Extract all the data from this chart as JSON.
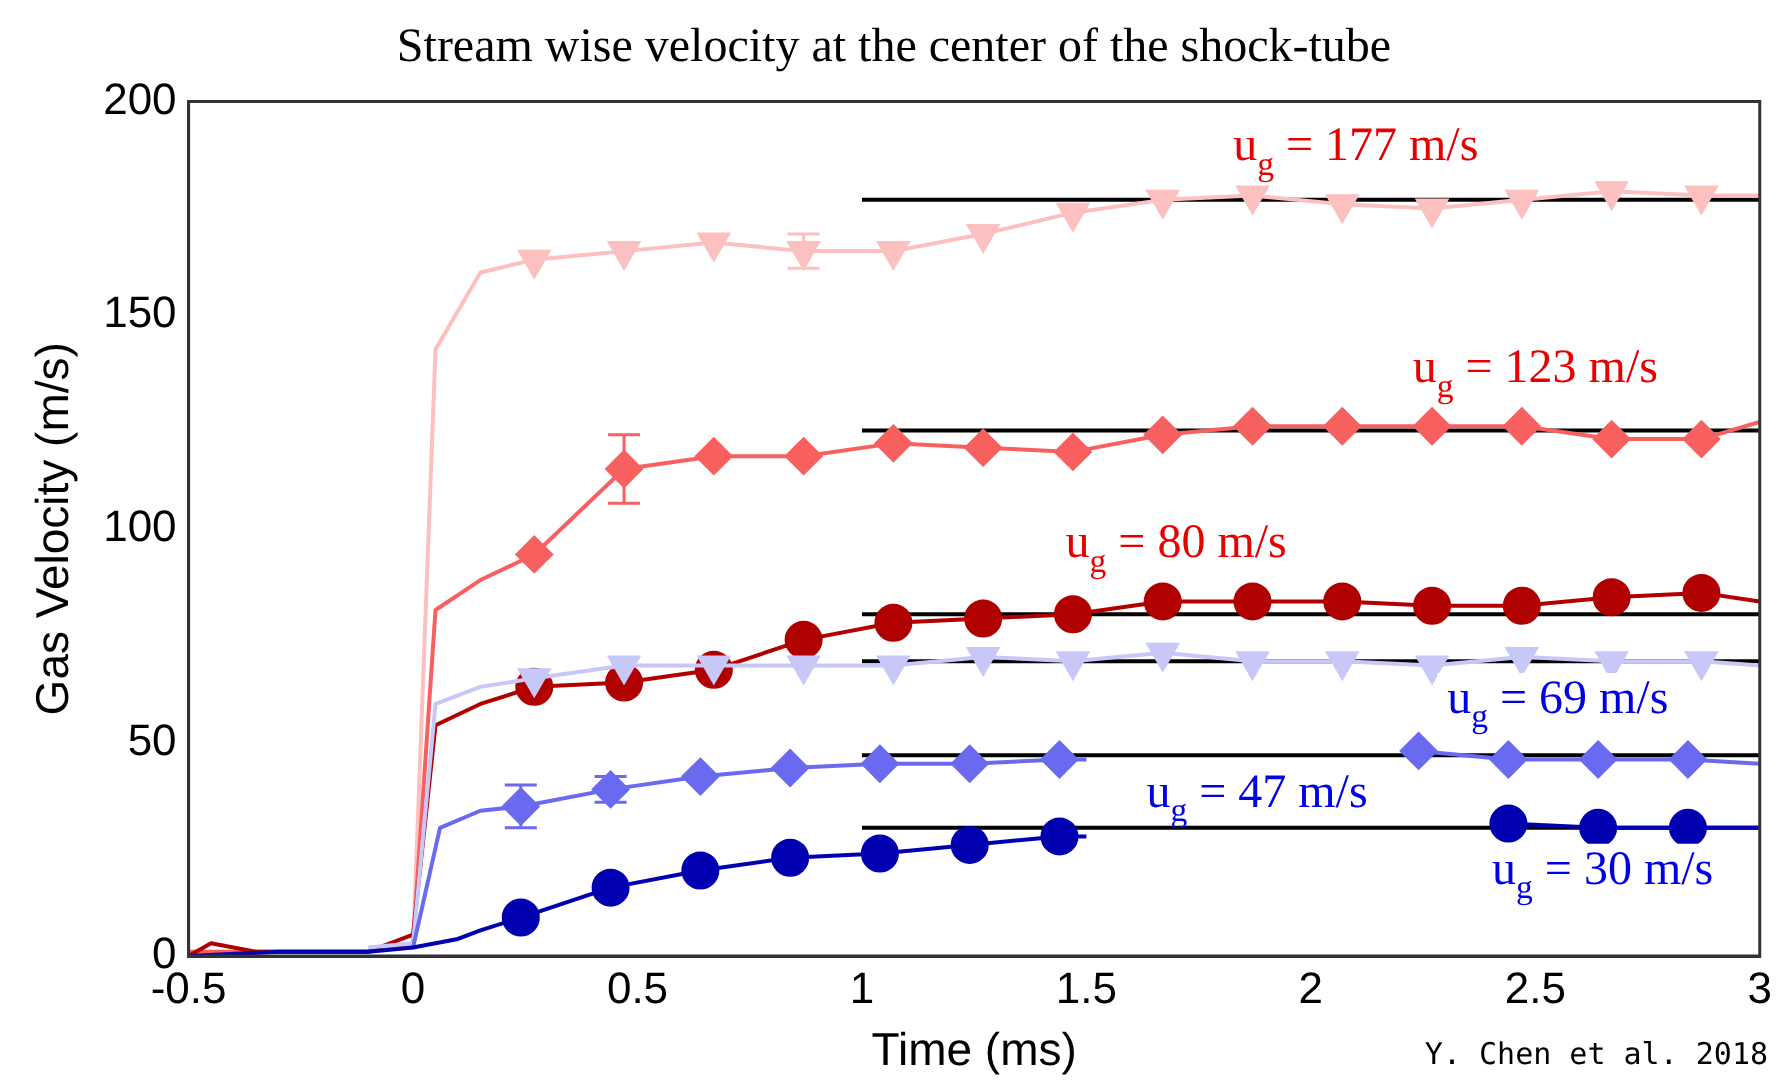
{
  "chart_data": {
    "type": "line",
    "title": "Stream wise velocity at the center of the shock-tube",
    "xlabel": "Time (ms)",
    "ylabel": "Gas Velocity (m/s)",
    "xlim": [
      -0.5,
      3
    ],
    "xticks": [
      -0.5,
      0,
      0.5,
      1,
      1.5,
      2,
      2.5,
      3
    ],
    "ylim": [
      0,
      200
    ],
    "yticks": [
      0,
      50,
      100,
      150,
      200
    ],
    "grid": false,
    "legend": false,
    "series": [
      {
        "type": "line",
        "color": "#000000",
        "marker": "none",
        "x": [
          1,
          3
        ],
        "values": [
          177,
          177
        ]
      },
      {
        "type": "line",
        "color": "#000000",
        "marker": "none",
        "x": [
          1,
          3
        ],
        "values": [
          123,
          123
        ]
      },
      {
        "type": "line",
        "color": "#000000",
        "marker": "none",
        "x": [
          1,
          3
        ],
        "values": [
          80,
          80
        ]
      },
      {
        "type": "line",
        "color": "#000000",
        "marker": "none",
        "x": [
          1,
          3
        ],
        "values": [
          69,
          69
        ]
      },
      {
        "type": "line",
        "color": "#000000",
        "marker": "none",
        "x": [
          1,
          3
        ],
        "values": [
          47,
          47
        ]
      },
      {
        "type": "line",
        "color": "#000000",
        "marker": "none",
        "x": [
          1,
          3
        ],
        "values": [
          30,
          30
        ]
      },
      {
        "name": "u$_{g}$ = 177 m/s",
        "color": "#fcc0c0",
        "marker": "none",
        "x": [
          -0.5,
          -0.3,
          -0.1,
          0,
          0.05,
          0.15,
          0.27,
          0.47,
          0.67,
          0.87,
          1.07,
          1.27,
          1.47,
          1.67,
          1.87,
          2.07,
          2.27,
          2.47,
          2.67,
          2.87,
          3
        ],
        "values": [
          1,
          1,
          1,
          2,
          142,
          160,
          163,
          165,
          167,
          165,
          165,
          169,
          174,
          177,
          178,
          176,
          175,
          177,
          179,
          178,
          178
        ]
      },
      {
        "type": "scatter",
        "color": "#fcc0c0",
        "marker": "triangle",
        "x": [
          0.27,
          0.47,
          0.67,
          0.87,
          1.07,
          1.27,
          1.47,
          1.67,
          1.87,
          2.07,
          2.27,
          2.47,
          2.67,
          2.87
        ],
        "values": [
          163,
          165,
          167,
          165,
          165,
          169,
          174,
          177,
          178,
          176,
          175,
          177,
          179,
          178
        ],
        "errors": [
          null,
          null,
          null,
          4,
          null,
          null,
          null,
          null,
          null,
          null,
          null,
          null,
          null,
          null
        ]
      },
      {
        "name": "u$_{g}$ = 123 m/s",
        "color": "#f86060",
        "marker": "none",
        "x": [
          -0.5,
          -0.3,
          -0.1,
          0,
          0.05,
          0.15,
          0.27,
          0.47,
          0.67,
          0.87,
          1.07,
          1.27,
          1.47,
          1.67,
          1.87,
          2.07,
          2.27,
          2.47,
          2.67,
          2.87,
          3
        ],
        "values": [
          1,
          1,
          1,
          3,
          81,
          88,
          94,
          114,
          117,
          117,
          120,
          119,
          118,
          122,
          124,
          124,
          124,
          124,
          121,
          121,
          125
        ]
      },
      {
        "type": "scatter",
        "color": "#f86060",
        "marker": "diamond",
        "x": [
          0.27,
          0.47,
          0.67,
          0.87,
          1.07,
          1.27,
          1.47,
          1.67,
          1.87,
          2.07,
          2.27,
          2.47,
          2.67,
          2.87
        ],
        "values": [
          94,
          114,
          117,
          117,
          120,
          119,
          118,
          122,
          124,
          124,
          124,
          124,
          121,
          121
        ],
        "errors": [
          null,
          8,
          null,
          null,
          null,
          null,
          null,
          null,
          null,
          null,
          null,
          null,
          null,
          null
        ]
      },
      {
        "name": "u$_{g}$ = 80 m/s",
        "color": "#b00000",
        "marker": "none",
        "x": [
          -0.5,
          -0.45,
          -0.35,
          -0.1,
          0,
          0.05,
          0.15,
          0.27,
          0.47,
          0.67,
          0.87,
          1.07,
          1.27,
          1.47,
          1.67,
          1.87,
          2.07,
          2.27,
          2.47,
          2.67,
          2.87,
          3
        ],
        "values": [
          0,
          3,
          1,
          1,
          5,
          54,
          59,
          63,
          64,
          67,
          74,
          78,
          79,
          80,
          83,
          83,
          83,
          82,
          82,
          84,
          85,
          83
        ]
      },
      {
        "type": "scatter",
        "color": "#b00000",
        "marker": "circle",
        "x": [
          0.27,
          0.47,
          0.67,
          0.87,
          1.07,
          1.27,
          1.47,
          1.67,
          1.87,
          2.07,
          2.27,
          2.47,
          2.67,
          2.87
        ],
        "values": [
          63,
          64,
          67,
          74,
          78,
          79,
          80,
          83,
          83,
          83,
          82,
          82,
          84,
          85
        ]
      },
      {
        "name": "u$_{g}$ = 69 m/s",
        "color": "#c8c8f8",
        "marker": "none",
        "x": [
          -0.1,
          0,
          0.05,
          0.15,
          0.27,
          0.47,
          0.67,
          0.87,
          1.07,
          1.27,
          1.47,
          1.67,
          1.87,
          2.07,
          2.27,
          2.47,
          2.67,
          2.87,
          3
        ],
        "values": [
          2,
          3,
          59,
          63,
          65,
          68,
          68,
          68,
          68,
          70,
          69,
          71,
          69,
          69,
          68,
          70,
          69,
          69,
          68
        ]
      },
      {
        "type": "scatter",
        "color": "#c8c8f8",
        "marker": "triangle",
        "x": [
          0.27,
          0.47,
          0.67,
          0.87,
          1.07,
          1.27,
          1.47,
          1.67,
          1.87,
          2.07,
          2.27,
          2.47,
          2.67,
          2.87
        ],
        "values": [
          65,
          68,
          68,
          68,
          68,
          70,
          69,
          71,
          69,
          69,
          68,
          70,
          69,
          69
        ]
      },
      {
        "name": "u$_{g}$ = 47 m/s",
        "color": "#6a6af0",
        "marker": "none",
        "x": [
          0,
          0.06,
          0.15,
          0.24,
          0.44,
          0.64,
          0.84,
          1.04,
          1.24,
          1.44,
          1.5,
          2.2,
          2.24,
          2.44,
          2.64,
          2.84,
          3
        ],
        "values": [
          2,
          30,
          34,
          35,
          39,
          42,
          44,
          45,
          45,
          46,
          46,
          null,
          48,
          46,
          46,
          46,
          45
        ]
      },
      {
        "type": "scatter",
        "color": "#6a6af0",
        "marker": "diamond",
        "x": [
          0.24,
          0.44,
          0.64,
          0.84,
          1.04,
          1.24,
          1.44,
          2.24,
          2.44,
          2.64,
          2.84
        ],
        "values": [
          35,
          39,
          42,
          44,
          45,
          45,
          46,
          48,
          46,
          46,
          46
        ],
        "errors": [
          5,
          3,
          null,
          null,
          null,
          null,
          null,
          null,
          null,
          null,
          null
        ]
      },
      {
        "name": "u$_{g}$ = 30 m/s",
        "color": "#0000b0",
        "marker": "none",
        "x": [
          -0.5,
          -0.3,
          -0.1,
          0,
          0.1,
          0.15,
          0.24,
          0.44,
          0.64,
          0.84,
          1.04,
          1.24,
          1.44,
          1.5,
          2.4,
          2.44,
          2.64,
          2.84,
          3
        ],
        "values": [
          0,
          1,
          1,
          2,
          4,
          6,
          9,
          16,
          20,
          23,
          24,
          26,
          28,
          28,
          null,
          31,
          30,
          30,
          30
        ]
      },
      {
        "type": "scatter",
        "color": "#0000b0",
        "marker": "circle",
        "x": [
          0.24,
          0.44,
          0.64,
          0.84,
          1.04,
          1.24,
          1.44,
          2.44,
          2.64,
          2.84
        ],
        "values": [
          9,
          16,
          20,
          23,
          24,
          26,
          28,
          31,
          30,
          30
        ]
      }
    ],
    "annotations": [
      "Y. Chen et al. 2018"
    ]
  }
}
